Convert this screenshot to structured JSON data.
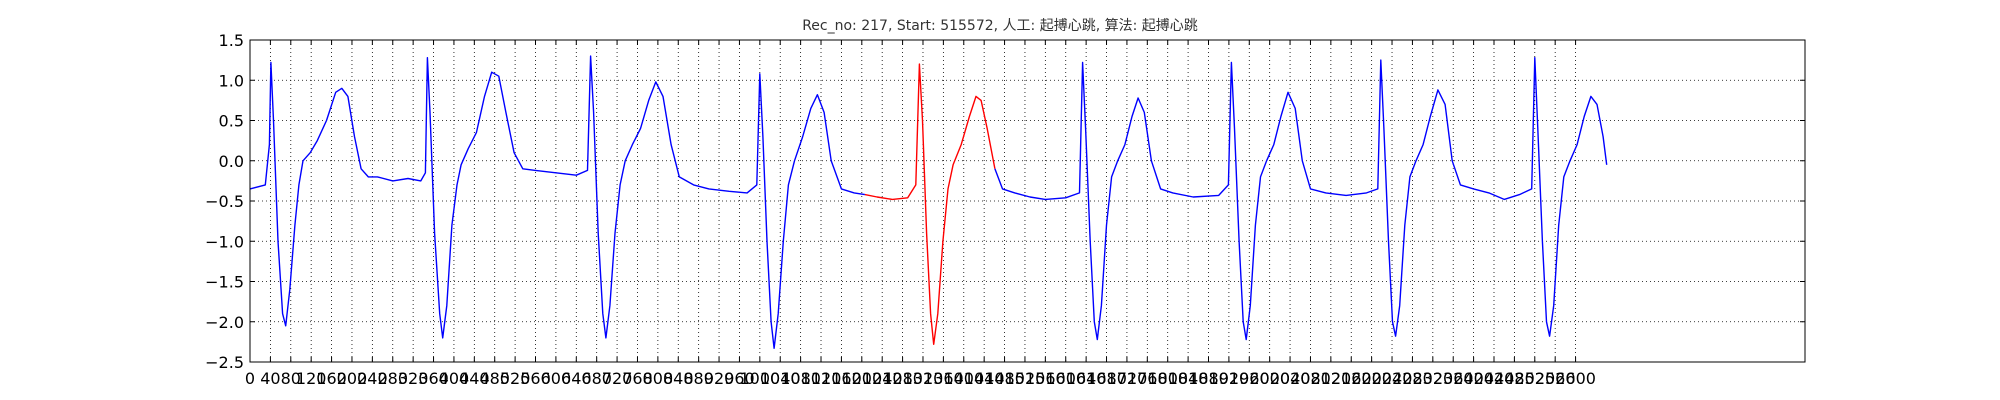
{
  "chart_data": {
    "type": "line",
    "title": "Rec_no: 217, Start: 515572, 人工: 起搏心跳, 算法: 起搏心跳",
    "xlabel": "",
    "ylabel": "",
    "xlim": [
      0,
      3050
    ],
    "ylim": [
      -2.5,
      1.5
    ],
    "grid": true,
    "grid_style": "dotted",
    "xticks": [
      0,
      40,
      80,
      120,
      160,
      200,
      240,
      280,
      320,
      360,
      400,
      440,
      480,
      520,
      560,
      600,
      640,
      680,
      720,
      760,
      800,
      840,
      880,
      920,
      960,
      1000,
      1040,
      1080,
      1120,
      1160,
      1200,
      1240,
      1280,
      1320,
      1360,
      1400,
      1440,
      1480,
      1520,
      1560,
      1600,
      1640,
      1680,
      1720,
      1760,
      1800,
      1840,
      1880,
      1920,
      1960,
      2000,
      2040,
      2080,
      2120,
      2160,
      2200,
      2240,
      2280,
      2320,
      2360,
      2400,
      2440,
      2480,
      2520,
      2560,
      2600
    ],
    "yticks": [
      "1.5",
      "1.0",
      "0.5",
      "0.0",
      "−0.5",
      "−1.0",
      "−1.5",
      "−2.0",
      "−2.5"
    ],
    "ytick_values": [
      1.5,
      1.0,
      0.5,
      0.0,
      -0.5,
      -1.0,
      -1.5,
      -2.0,
      -2.5
    ],
    "beat_x": [
      41,
      348,
      668,
      1000,
      1313,
      1633,
      1925,
      2218,
      2520
    ],
    "highlight_range": [
      1206,
      1461
    ],
    "series": [
      {
        "color": "#0000ff",
        "points": [
          [
            0,
            -0.35
          ],
          [
            30,
            -0.3
          ],
          [
            38,
            0.2
          ],
          [
            41,
            1.22
          ],
          [
            46,
            0.5
          ],
          [
            55,
            -1.0
          ],
          [
            64,
            -1.9
          ],
          [
            70,
            -2.05
          ],
          [
            78,
            -1.6
          ],
          [
            88,
            -0.8
          ],
          [
            96,
            -0.3
          ],
          [
            104,
            0.0
          ],
          [
            118,
            0.1
          ],
          [
            132,
            0.25
          ],
          [
            150,
            0.5
          ],
          [
            168,
            0.85
          ],
          [
            180,
            0.9
          ],
          [
            192,
            0.8
          ],
          [
            205,
            0.3
          ],
          [
            218,
            -0.1
          ],
          [
            232,
            -0.2
          ],
          [
            250,
            -0.2
          ],
          [
            280,
            -0.25
          ],
          [
            310,
            -0.22
          ],
          [
            335,
            -0.25
          ],
          [
            344,
            -0.15
          ],
          [
            348,
            1.28
          ],
          [
            353,
            0.6
          ],
          [
            362,
            -0.9
          ],
          [
            372,
            -1.9
          ],
          [
            378,
            -2.2
          ],
          [
            386,
            -1.8
          ],
          [
            396,
            -0.8
          ],
          [
            406,
            -0.3
          ],
          [
            414,
            -0.05
          ],
          [
            428,
            0.15
          ],
          [
            444,
            0.35
          ],
          [
            460,
            0.8
          ],
          [
            474,
            1.1
          ],
          [
            488,
            1.05
          ],
          [
            502,
            0.6
          ],
          [
            518,
            0.1
          ],
          [
            535,
            -0.1
          ],
          [
            560,
            -0.12
          ],
          [
            600,
            -0.15
          ],
          [
            640,
            -0.18
          ],
          [
            662,
            -0.12
          ],
          [
            668,
            1.3
          ],
          [
            674,
            0.6
          ],
          [
            683,
            -0.9
          ],
          [
            692,
            -1.9
          ],
          [
            698,
            -2.2
          ],
          [
            706,
            -1.8
          ],
          [
            716,
            -0.9
          ],
          [
            726,
            -0.3
          ],
          [
            736,
            0.0
          ],
          [
            750,
            0.2
          ],
          [
            766,
            0.4
          ],
          [
            782,
            0.75
          ],
          [
            796,
            0.98
          ],
          [
            810,
            0.8
          ],
          [
            826,
            0.2
          ],
          [
            842,
            -0.2
          ],
          [
            870,
            -0.3
          ],
          [
            900,
            -0.35
          ],
          [
            940,
            -0.38
          ],
          [
            975,
            -0.4
          ],
          [
            994,
            -0.3
          ],
          [
            1000,
            1.08
          ],
          [
            1006,
            0.3
          ],
          [
            1014,
            -1.0
          ],
          [
            1022,
            -2.0
          ],
          [
            1028,
            -2.33
          ],
          [
            1036,
            -1.9
          ],
          [
            1046,
            -1.0
          ],
          [
            1056,
            -0.3
          ],
          [
            1068,
            0.0
          ],
          [
            1084,
            0.3
          ],
          [
            1100,
            0.65
          ],
          [
            1113,
            0.82
          ],
          [
            1126,
            0.6
          ],
          [
            1140,
            0.0
          ],
          [
            1160,
            -0.35
          ],
          [
            1185,
            -0.4
          ],
          [
            1206,
            -0.42
          ]
        ]
      },
      {
        "color": "#ff0000",
        "points": [
          [
            1206,
            -0.42
          ],
          [
            1230,
            -0.45
          ],
          [
            1260,
            -0.48
          ],
          [
            1290,
            -0.46
          ],
          [
            1306,
            -0.3
          ],
          [
            1313,
            1.2
          ],
          [
            1319,
            0.5
          ],
          [
            1327,
            -0.9
          ],
          [
            1335,
            -1.9
          ],
          [
            1341,
            -2.28
          ],
          [
            1349,
            -1.9
          ],
          [
            1359,
            -1.0
          ],
          [
            1369,
            -0.35
          ],
          [
            1379,
            -0.05
          ],
          [
            1395,
            0.2
          ],
          [
            1411,
            0.55
          ],
          [
            1424,
            0.8
          ],
          [
            1434,
            0.75
          ],
          [
            1446,
            0.4
          ],
          [
            1461,
            -0.1
          ]
        ]
      },
      {
        "color": "#0000ff",
        "points": [
          [
            1461,
            -0.1
          ],
          [
            1476,
            -0.35
          ],
          [
            1500,
            -0.4
          ],
          [
            1530,
            -0.45
          ],
          [
            1560,
            -0.48
          ],
          [
            1600,
            -0.46
          ],
          [
            1627,
            -0.4
          ],
          [
            1633,
            1.22
          ],
          [
            1639,
            0.4
          ],
          [
            1648,
            -1.0
          ],
          [
            1656,
            -2.0
          ],
          [
            1662,
            -2.22
          ],
          [
            1670,
            -1.8
          ],
          [
            1680,
            -0.8
          ],
          [
            1690,
            -0.2
          ],
          [
            1702,
            0.0
          ],
          [
            1716,
            0.2
          ],
          [
            1730,
            0.55
          ],
          [
            1742,
            0.78
          ],
          [
            1754,
            0.6
          ],
          [
            1768,
            0.0
          ],
          [
            1786,
            -0.35
          ],
          [
            1810,
            -0.4
          ],
          [
            1850,
            -0.45
          ],
          [
            1900,
            -0.43
          ],
          [
            1919,
            -0.3
          ],
          [
            1925,
            1.22
          ],
          [
            1931,
            0.4
          ],
          [
            1940,
            -1.0
          ],
          [
            1948,
            -2.0
          ],
          [
            1954,
            -2.22
          ],
          [
            1962,
            -1.8
          ],
          [
            1972,
            -0.8
          ],
          [
            1982,
            -0.2
          ],
          [
            1994,
            0.0
          ],
          [
            2008,
            0.2
          ],
          [
            2022,
            0.55
          ],
          [
            2036,
            0.85
          ],
          [
            2050,
            0.65
          ],
          [
            2064,
            0.0
          ],
          [
            2080,
            -0.35
          ],
          [
            2110,
            -0.4
          ],
          [
            2150,
            -0.43
          ],
          [
            2190,
            -0.4
          ],
          [
            2212,
            -0.35
          ],
          [
            2218,
            1.25
          ],
          [
            2224,
            0.4
          ],
          [
            2233,
            -1.0
          ],
          [
            2241,
            -2.0
          ],
          [
            2247,
            -2.18
          ],
          [
            2255,
            -1.8
          ],
          [
            2265,
            -0.8
          ],
          [
            2275,
            -0.2
          ],
          [
            2287,
            0.0
          ],
          [
            2301,
            0.2
          ],
          [
            2315,
            0.55
          ],
          [
            2330,
            0.88
          ],
          [
            2344,
            0.7
          ],
          [
            2358,
            0.0
          ],
          [
            2374,
            -0.3
          ],
          [
            2400,
            -0.35
          ],
          [
            2430,
            -0.4
          ],
          [
            2460,
            -0.48
          ],
          [
            2490,
            -0.42
          ],
          [
            2514,
            -0.35
          ],
          [
            2520,
            1.28
          ],
          [
            2526,
            0.4
          ],
          [
            2535,
            -1.0
          ],
          [
            2543,
            -2.0
          ],
          [
            2549,
            -2.18
          ],
          [
            2557,
            -1.8
          ],
          [
            2567,
            -0.8
          ],
          [
            2577,
            -0.2
          ],
          [
            2589,
            0.0
          ],
          [
            2603,
            0.2
          ],
          [
            2617,
            0.55
          ],
          [
            2630,
            0.8
          ],
          [
            2642,
            0.7
          ],
          [
            2654,
            0.3
          ],
          [
            2661,
            -0.05
          ]
        ]
      }
    ]
  }
}
